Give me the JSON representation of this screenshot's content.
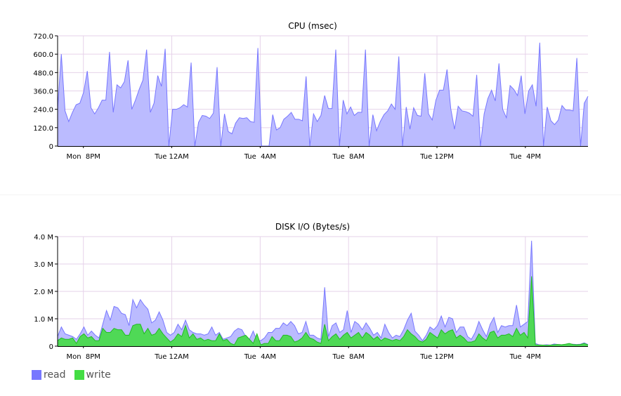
{
  "chart_data": [
    {
      "type": "area",
      "title": "CPU (msec)",
      "ylim": [
        0,
        720
      ],
      "yticks": [
        0,
        120,
        240,
        360,
        480,
        600,
        720
      ],
      "ytick_labels": [
        "0",
        "120.0",
        "240.0",
        "360.0",
        "480.0",
        "600.0",
        "720.0"
      ],
      "x_labels": [
        "Mon  8PM",
        "Tue 12AM",
        "Tue  4AM",
        "Tue  8AM",
        "Tue 12PM",
        "Tue  4PM"
      ],
      "x_start": "Mon 18:50",
      "x_end": "Tue 18:50",
      "grid": true,
      "series": [
        {
          "name": "",
          "color": "#7777ff",
          "fill": "#bbbbff",
          "values": [
            240,
            600,
            230,
            160,
            220,
            270,
            280,
            350,
            490,
            250,
            210,
            250,
            300,
            300,
            615,
            220,
            400,
            380,
            420,
            560,
            240,
            300,
            370,
            430,
            630,
            220,
            280,
            460,
            390,
            635,
            0,
            240,
            240,
            250,
            270,
            255,
            545,
            0,
            155,
            200,
            195,
            180,
            215,
            515,
            0,
            210,
            95,
            80,
            150,
            185,
            180,
            185,
            160,
            155,
            640,
            0,
            0,
            0,
            205,
            105,
            120,
            175,
            195,
            220,
            175,
            175,
            165,
            455,
            0,
            210,
            160,
            200,
            330,
            245,
            245,
            630,
            0,
            300,
            210,
            255,
            200,
            220,
            220,
            630,
            0,
            205,
            100,
            160,
            205,
            230,
            275,
            240,
            585,
            0,
            255,
            110,
            250,
            200,
            195,
            475,
            210,
            170,
            300,
            365,
            365,
            500,
            245,
            110,
            260,
            230,
            225,
            215,
            195,
            465,
            0,
            210,
            310,
            365,
            295,
            540,
            240,
            185,
            395,
            370,
            330,
            460,
            210,
            360,
            400,
            260,
            675,
            0,
            255,
            165,
            140,
            170,
            265,
            235,
            235,
            230,
            575,
            0,
            280,
            325
          ]
        }
      ]
    },
    {
      "type": "area",
      "title": "DISK I/O (Bytes/s)",
      "ylim": [
        0,
        4000000
      ],
      "yticks": [
        0,
        1000000,
        2000000,
        3000000,
        4000000
      ],
      "ytick_labels": [
        "0",
        "1.0 M",
        "2.0 M",
        "3.0 M",
        "4.0 M"
      ],
      "x_labels": [
        "Mon  8PM",
        "Tue 12AM",
        "Tue  4AM",
        "Tue  8AM",
        "Tue 12PM",
        "Tue  4PM"
      ],
      "x_start": "Mon 18:50",
      "x_end": "Tue 18:50",
      "grid": true,
      "legend": "bottom-left",
      "series": [
        {
          "name": "read",
          "color": "#7777ff",
          "fill": "#bbbbff",
          "values": [
            350000,
            700000,
            450000,
            400000,
            350000,
            250000,
            450000,
            700000,
            400000,
            550000,
            400000,
            300000,
            800000,
            1300000,
            950000,
            1450000,
            1400000,
            1200000,
            1150000,
            750000,
            1700000,
            1400000,
            1700000,
            1500000,
            1350000,
            850000,
            950000,
            1250000,
            950000,
            500000,
            400000,
            500000,
            800000,
            600000,
            950000,
            600000,
            500000,
            450000,
            450000,
            400000,
            450000,
            700000,
            400000,
            500000,
            250000,
            300000,
            350000,
            550000,
            650000,
            600000,
            350000,
            250000,
            550000,
            200000,
            200000,
            300000,
            500000,
            500000,
            650000,
            650000,
            850000,
            750000,
            900000,
            750000,
            450000,
            500000,
            900000,
            400000,
            400000,
            300000,
            250000,
            2150000,
            350000,
            750000,
            850000,
            500000,
            600000,
            1300000,
            500000,
            900000,
            800000,
            600000,
            850000,
            650000,
            400000,
            500000,
            300000,
            800000,
            500000,
            300000,
            400000,
            350000,
            600000,
            950000,
            1200000,
            550000,
            400000,
            200000,
            400000,
            700000,
            600000,
            750000,
            1100000,
            700000,
            1050000,
            1000000,
            500000,
            700000,
            700000,
            350000,
            250000,
            500000,
            900000,
            600000,
            350000,
            800000,
            1050000,
            500000,
            750000,
            700000,
            750000,
            750000,
            1500000,
            700000,
            800000,
            900000,
            3850000,
            100000,
            50000,
            40000,
            50000,
            40000,
            80000,
            60000,
            50000,
            60000,
            80000,
            70000,
            60000,
            70000,
            120000,
            60000
          ]
        },
        {
          "name": "write",
          "color": "#22bb22",
          "fill": "#44dd44",
          "values": [
            200000,
            300000,
            250000,
            250000,
            300000,
            100000,
            350000,
            450000,
            300000,
            350000,
            200000,
            200000,
            650000,
            500000,
            500000,
            650000,
            600000,
            600000,
            400000,
            400000,
            750000,
            800000,
            800000,
            450000,
            650000,
            400000,
            450000,
            650000,
            450000,
            300000,
            150000,
            250000,
            450000,
            350000,
            750000,
            300000,
            450000,
            250000,
            300000,
            200000,
            250000,
            200000,
            200000,
            450000,
            200000,
            250000,
            100000,
            50000,
            300000,
            350000,
            400000,
            250000,
            100000,
            450000,
            50000,
            100000,
            100000,
            350000,
            200000,
            200000,
            400000,
            400000,
            350000,
            150000,
            200000,
            300000,
            500000,
            300000,
            250000,
            150000,
            100000,
            800000,
            200000,
            350000,
            450000,
            250000,
            400000,
            500000,
            300000,
            400000,
            500000,
            300000,
            500000,
            400000,
            250000,
            350000,
            200000,
            300000,
            250000,
            200000,
            250000,
            200000,
            350000,
            600000,
            450000,
            350000,
            200000,
            150000,
            250000,
            500000,
            400000,
            300000,
            600000,
            450000,
            550000,
            600000,
            300000,
            400000,
            300000,
            150000,
            150000,
            200000,
            450000,
            300000,
            200000,
            500000,
            550000,
            300000,
            400000,
            400000,
            450000,
            350000,
            650000,
            400000,
            500000,
            300000,
            2550000,
            50000,
            40000,
            40000,
            30000,
            40000,
            50000,
            60000,
            50000,
            70000,
            100000,
            60000,
            50000,
            60000,
            100000,
            50000
          ]
        }
      ]
    }
  ]
}
